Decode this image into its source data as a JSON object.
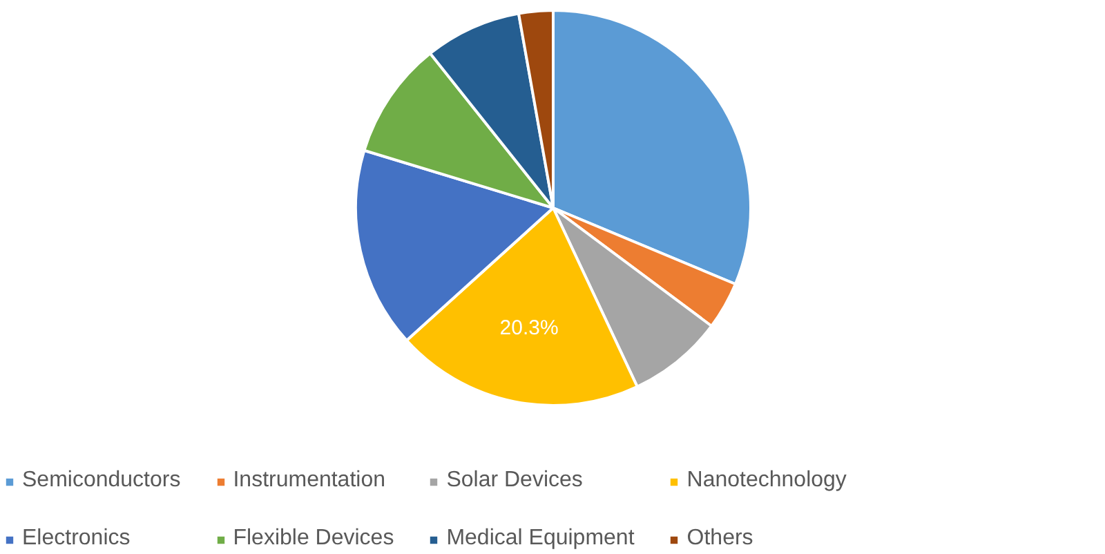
{
  "chart_data": {
    "type": "pie",
    "categories": [
      "Semiconductors",
      "Instrumentation",
      "Solar Devices",
      "Nanotechnology",
      "Electronics",
      "Flexible Devices",
      "Medical Equipment",
      "Others"
    ],
    "values": [
      31.3,
      3.9,
      7.8,
      20.3,
      16.4,
      9.6,
      7.9,
      2.8
    ],
    "colors": [
      "#5b9bd5",
      "#ed7d31",
      "#a5a5a5",
      "#ffc000",
      "#4472c4",
      "#70ad47",
      "#255e91",
      "#9e480e"
    ],
    "value_labels": [
      null,
      null,
      null,
      "20.3%",
      null,
      null,
      null,
      null
    ],
    "legend": "bottom"
  }
}
